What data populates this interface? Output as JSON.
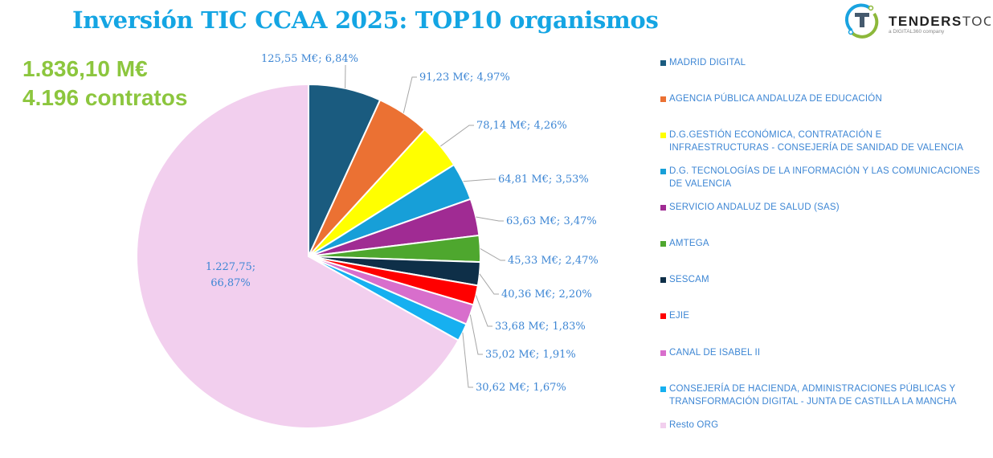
{
  "header": {
    "title": "Inversión TIC CCAA 2025: TOP10 organismos",
    "total_amount": "1.836,10 M€",
    "total_contracts": "4.196 contratos"
  },
  "logo": {
    "name": "TENDERSTOOL",
    "tagline": "a DIGITAL360 company"
  },
  "chart_data": {
    "type": "pie",
    "title": "Inversión TIC CCAA 2025: TOP10 organismos",
    "start_angle": "12 o'clock, clockwise",
    "legend_position": "right",
    "slices": [
      {
        "name": "MADRID DIGITAL",
        "value": 125.55,
        "percent": 6.84,
        "label": "125,55 M€; 6,84%",
        "color": "#1a5b7f"
      },
      {
        "name": "AGENCIA PÚBLICA ANDALUZA DE EDUCACIÓN",
        "value": 91.23,
        "percent": 4.97,
        "label": "91,23 M€; 4,97%",
        "color": "#eb7133"
      },
      {
        "name": "D.G.GESTIÓN ECONÓMICA, CONTRATACIÓN E INFRAESTRUCTURAS - CONSEJERÍA DE SANIDAD DE VALENCIA",
        "value": 78.14,
        "percent": 4.26,
        "label": "78,14 M€; 4,26%",
        "color": "#ffff00"
      },
      {
        "name": "D.G. TECNOLOGÍAS DE LA INFORMACIÓN Y LAS COMUNICACIONES DE VALENCIA",
        "value": 64.81,
        "percent": 3.53,
        "label": "64,81 M€; 3,53%",
        "color": "#179fd8"
      },
      {
        "name": "SERVICIO ANDALUZ DE SALUD (SAS)",
        "value": 63.63,
        "percent": 3.47,
        "label": "63,63 M€; 3,47%",
        "color": "#a02b93"
      },
      {
        "name": "AMTEGA",
        "value": 45.33,
        "percent": 2.47,
        "label": "45,33 M€; 2,47%",
        "color": "#4ea72e"
      },
      {
        "name": "SESCAM",
        "value": 40.36,
        "percent": 2.2,
        "label": "40,36 M€; 2,20%",
        "color": "#0e2f48"
      },
      {
        "name": "EJIE",
        "value": 33.68,
        "percent": 1.83,
        "label": "33,68 M€; 1,83%",
        "color": "#ff0000"
      },
      {
        "name": "CANAL DE ISABEL II",
        "value": 35.02,
        "percent": 1.91,
        "label": "35,02 M€; 1,91%",
        "color": "#d86ecc"
      },
      {
        "name": "CONSEJERÍA DE HACIENDA, ADMINISTRACIONES PÚBLICAS Y TRANSFORMACIÓN DIGITAL - JUNTA DE CASTILLA LA MANCHA",
        "value": 30.62,
        "percent": 1.67,
        "label": "30,62 M€; 1,67%",
        "color": "#16b0f0"
      },
      {
        "name": "Resto ORG",
        "value": 1227.75,
        "percent": 66.87,
        "label": "1.227,75; 66,87%",
        "label_lines": [
          "1.227,75;",
          "66,87%"
        ],
        "color": "#f2cfee"
      }
    ]
  }
}
